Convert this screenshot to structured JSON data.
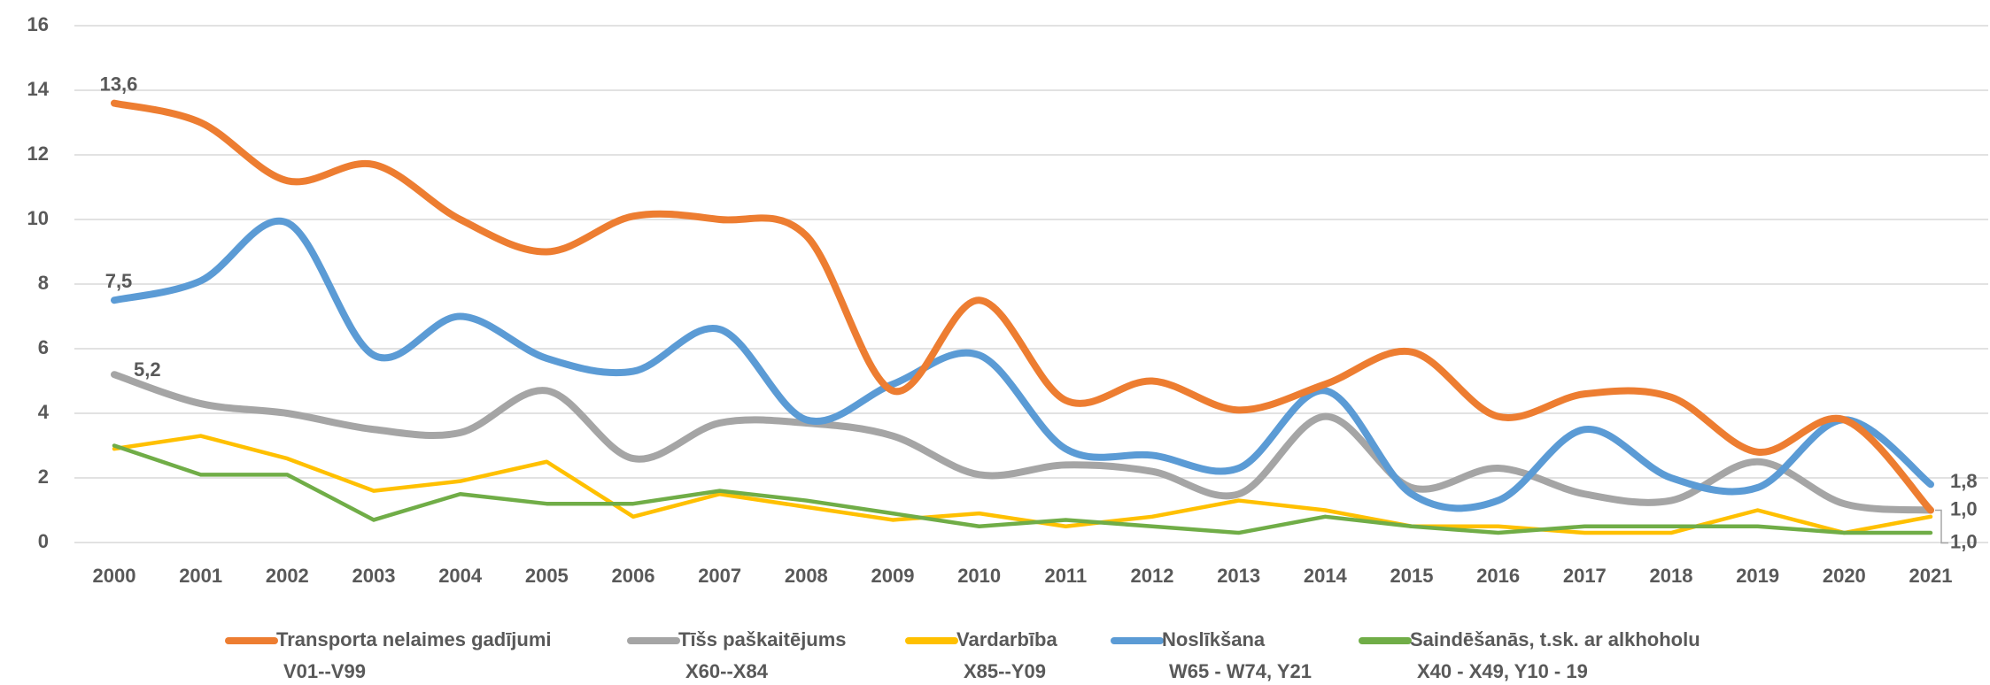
{
  "chart_data": {
    "type": "line",
    "categories": [
      "2000",
      "2001",
      "2002",
      "2003",
      "2004",
      "2005",
      "2006",
      "2007",
      "2008",
      "2009",
      "2010",
      "2011",
      "2012",
      "2013",
      "2014",
      "2015",
      "2016",
      "2017",
      "2018",
      "2019",
      "2020",
      "2021"
    ],
    "ylim": [
      0,
      16
    ],
    "yticks": [
      0,
      2,
      4,
      6,
      8,
      10,
      12,
      14,
      16
    ],
    "grid": true,
    "legend": "bottom",
    "series": [
      {
        "name": "Transporta nelaimes gadījumi",
        "code": "V01--V99",
        "color": "#ed7d31",
        "smooth": true,
        "values": [
          13.6,
          13.0,
          11.2,
          11.7,
          10.0,
          9.0,
          10.1,
          10.0,
          9.5,
          4.7,
          7.5,
          4.4,
          5.0,
          4.1,
          4.9,
          5.9,
          3.9,
          4.6,
          4.5,
          2.8,
          3.8,
          1.0
        ],
        "value_labels": [
          "13,6",
          null,
          null,
          null,
          null,
          null,
          null,
          null,
          null,
          null,
          null,
          null,
          null,
          null,
          null,
          null,
          null,
          null,
          null,
          null,
          null,
          "1,0"
        ]
      },
      {
        "name": "Tīšs paškaitējums",
        "code": "X60--X84",
        "color": "#a5a5a5",
        "smooth": true,
        "values": [
          5.2,
          4.3,
          4.0,
          3.5,
          3.4,
          4.7,
          2.6,
          3.7,
          3.7,
          3.3,
          2.1,
          2.4,
          2.2,
          1.5,
          3.9,
          1.7,
          2.3,
          1.5,
          1.3,
          2.5,
          1.2,
          1.0
        ],
        "value_labels": [
          "5,2",
          null,
          null,
          null,
          null,
          null,
          null,
          null,
          null,
          null,
          null,
          null,
          null,
          null,
          null,
          null,
          null,
          null,
          null,
          null,
          null,
          "1,0"
        ]
      },
      {
        "name": "Vardarbība",
        "code": "X85--Y09",
        "color": "#ffc000",
        "smooth": false,
        "values": [
          2.9,
          3.3,
          2.6,
          1.6,
          1.9,
          2.5,
          0.8,
          1.5,
          1.1,
          0.7,
          0.9,
          0.5,
          0.8,
          1.3,
          1.0,
          0.5,
          0.5,
          0.3,
          0.3,
          1.0,
          0.3,
          0.8
        ]
      },
      {
        "name": "Noslīkšana",
        "code": "W65 - W74, Y21",
        "color": "#5b9bd5",
        "smooth": true,
        "values": [
          7.5,
          8.1,
          9.9,
          5.8,
          7.0,
          5.7,
          5.3,
          6.6,
          3.8,
          4.9,
          5.8,
          2.9,
          2.7,
          2.3,
          4.7,
          1.5,
          1.3,
          3.5,
          2.0,
          1.7,
          3.8,
          1.8
        ],
        "value_labels": [
          "7,5",
          null,
          null,
          null,
          null,
          null,
          null,
          null,
          null,
          null,
          null,
          null,
          null,
          null,
          null,
          null,
          null,
          null,
          null,
          null,
          null,
          "1,8"
        ]
      },
      {
        "name": "Saindēšanās, t.sk. ar alkhoholu",
        "code": "X40 - X49, Y10 - 19",
        "color": "#70ad47",
        "smooth": false,
        "values": [
          3.0,
          2.1,
          2.1,
          0.7,
          1.5,
          1.2,
          1.2,
          1.6,
          1.3,
          0.9,
          0.5,
          0.7,
          0.5,
          0.3,
          0.8,
          0.5,
          0.3,
          0.5,
          0.5,
          0.5,
          0.3,
          0.3
        ]
      }
    ]
  }
}
